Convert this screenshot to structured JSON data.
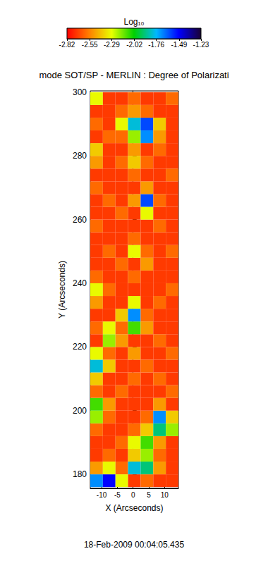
{
  "chart_data": {
    "type": "heatmap",
    "title": "mode SOT/SP - MERLIN : Degree of Polarizati",
    "footer": "18-Feb-2009 00:04:05.435",
    "x_label": "X (Arcseconds)",
    "y_label": "Y (Arcseconds)",
    "xlim": [
      -13.6,
      14.4
    ],
    "ylim": [
      175.6,
      300.4
    ],
    "xticks": [
      -10,
      -5,
      0,
      5,
      10
    ],
    "yticks": [
      180,
      200,
      220,
      240,
      260,
      280,
      300
    ],
    "cells": {
      "x": [
        -11.6,
        -7.6,
        -3.6,
        0.4,
        4.4,
        8.4,
        12.4
      ],
      "y": [
        178,
        182,
        186,
        190,
        194,
        198,
        202,
        206,
        210,
        214,
        218,
        222,
        226,
        230,
        234,
        238,
        242,
        246,
        250,
        254,
        258,
        262,
        266,
        270,
        274,
        278,
        282,
        286,
        290,
        294,
        298
      ],
      "values": [
        [
          -1.7,
          -1.5,
          -2.3,
          -2.7,
          -2.6,
          -2.7,
          -2.7
        ],
        [
          -2.5,
          -2.3,
          -2.6,
          -1.8,
          -1.9,
          -2.5,
          -2.7
        ],
        [
          -2.7,
          -2.6,
          -2.7,
          -2.4,
          -2.2,
          -2.6,
          -2.7
        ],
        [
          -2.7,
          -2.7,
          -2.6,
          -2.3,
          -2.1,
          -2.5,
          -2.7
        ],
        [
          -2.6,
          -2.7,
          -2.7,
          -2.6,
          -2.4,
          -1.9,
          -2.2
        ],
        [
          -2.2,
          -2.6,
          -2.7,
          -2.7,
          -2.6,
          -1.7,
          -2.4
        ],
        [
          -2.1,
          -2.5,
          -2.7,
          -2.7,
          -2.7,
          -2.5,
          -2.7
        ],
        [
          -2.6,
          -2.7,
          -2.6,
          -2.7,
          -2.7,
          -2.7,
          -2.6
        ],
        [
          -2.4,
          -2.7,
          -2.7,
          -2.6,
          -2.7,
          -2.6,
          -2.7
        ],
        [
          -1.8,
          -2.4,
          -2.7,
          -2.7,
          -2.6,
          -2.7,
          -2.7
        ],
        [
          -2.3,
          -2.6,
          -2.7,
          -2.5,
          -2.7,
          -2.7,
          -2.6
        ],
        [
          -2.7,
          -2.2,
          -2.5,
          -2.7,
          -2.7,
          -2.6,
          -2.7
        ],
        [
          -2.6,
          -2.3,
          -2.6,
          -2.1,
          -2.5,
          -2.7,
          -2.7
        ],
        [
          -2.7,
          -2.7,
          -2.4,
          -1.7,
          -2.6,
          -2.7,
          -2.7
        ],
        [
          -2.5,
          -2.7,
          -2.7,
          -2.3,
          -2.7,
          -2.6,
          -2.7
        ],
        [
          -2.3,
          -2.6,
          -2.7,
          -2.7,
          -2.7,
          -2.7,
          -2.6
        ],
        [
          -2.6,
          -2.7,
          -2.7,
          -2.6,
          -2.7,
          -2.7,
          -2.7
        ],
        [
          -2.7,
          -2.7,
          -2.6,
          -2.7,
          -2.5,
          -2.7,
          -2.7
        ],
        [
          -2.7,
          -2.6,
          -2.7,
          -2.3,
          -2.6,
          -2.7,
          -2.6
        ],
        [
          -2.7,
          -2.7,
          -2.7,
          -2.6,
          -2.7,
          -2.7,
          -2.7
        ],
        [
          -2.6,
          -2.7,
          -2.7,
          -2.7,
          -2.7,
          -2.6,
          -2.7
        ],
        [
          -2.7,
          -2.7,
          -2.6,
          -2.7,
          -2.3,
          -2.7,
          -2.7
        ],
        [
          -2.7,
          -2.6,
          -2.7,
          -2.5,
          -1.6,
          -2.6,
          -2.7
        ],
        [
          -2.6,
          -2.7,
          -2.7,
          -2.7,
          -2.5,
          -2.7,
          -2.7
        ],
        [
          -2.7,
          -2.7,
          -2.7,
          -2.6,
          -2.7,
          -2.7,
          -2.6
        ],
        [
          -2.5,
          -2.7,
          -2.6,
          -2.4,
          -2.6,
          -2.7,
          -2.7
        ],
        [
          -2.4,
          -2.7,
          -2.7,
          -2.5,
          -2.7,
          -2.6,
          -2.7
        ],
        [
          -2.7,
          -2.6,
          -2.6,
          -2.2,
          -1.7,
          -2.5,
          -2.7
        ],
        [
          -2.6,
          -2.7,
          -2.3,
          -1.8,
          -1.6,
          -2.4,
          -2.7
        ],
        [
          -2.7,
          -2.7,
          -2.6,
          -2.5,
          -2.6,
          -2.7,
          -2.7
        ],
        [
          -2.3,
          -2.7,
          -2.7,
          -2.6,
          -2.7,
          -2.7,
          -2.6
        ]
      ]
    },
    "colorbar": {
      "label": "Log₁₀",
      "range": [
        -2.82,
        -1.23
      ],
      "ticks": [
        -2.82,
        -2.55,
        -2.29,
        -2.02,
        -1.76,
        -1.49,
        -1.23
      ],
      "colors": [
        "#ff0000",
        "#ff8000",
        "#e8ff00",
        "#00d000",
        "#00b8ff",
        "#0000ff",
        "#1a0033"
      ]
    }
  }
}
